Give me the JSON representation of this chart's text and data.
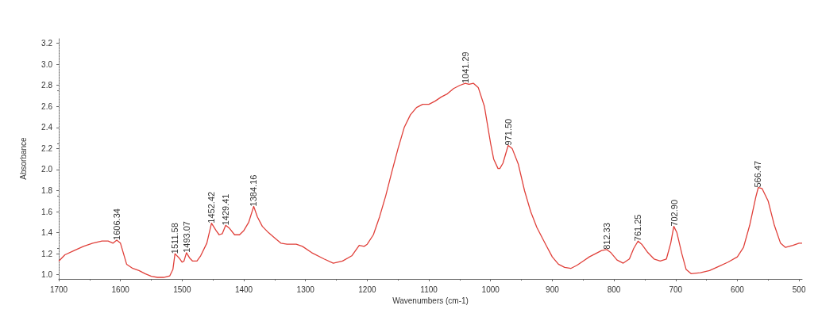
{
  "chart_data": {
    "type": "line",
    "xlabel": "Wavenumbers (cm-1)",
    "ylabel": "Absorbance",
    "xlim": [
      1700,
      495
    ],
    "xticks": [
      1700,
      1600,
      1500,
      1400,
      1300,
      1200,
      1100,
      1000,
      900,
      800,
      700,
      600,
      500
    ],
    "ylim": [
      0.96,
      3.25
    ],
    "yticks": [
      {
        "value": 1,
        "label": "1.0"
      },
      1.2,
      1.4,
      1.6,
      1.8,
      {
        "value": 2,
        "label": "2.0"
      },
      2.2,
      2.4,
      2.6,
      2.8,
      {
        "value": 3,
        "label": "3.0"
      },
      3.2
    ],
    "grid": false,
    "marker": "none",
    "line_style": "solid",
    "series": [
      {
        "color": "#e0403a",
        "x": [
          1700,
          1690,
          1675,
          1660,
          1645,
          1630,
          1620,
          1612,
          1606,
          1600,
          1595,
          1590,
          1580,
          1570,
          1560,
          1550,
          1540,
          1530,
          1520,
          1515,
          1511.6,
          1505,
          1500,
          1497,
          1493,
          1488,
          1483,
          1476,
          1470,
          1460,
          1452.4,
          1445,
          1440,
          1435,
          1429.4,
          1423,
          1415,
          1407,
          1400,
          1392,
          1384,
          1378,
          1370,
          1360,
          1350,
          1340,
          1330,
          1315,
          1305,
          1290,
          1270,
          1255,
          1240,
          1225,
          1213,
          1205,
          1200,
          1190,
          1180,
          1170,
          1160,
          1150,
          1140,
          1130,
          1120,
          1110,
          1100,
          1090,
          1080,
          1070,
          1060,
          1050,
          1041,
          1035,
          1028,
          1020,
          1010,
          1000,
          995,
          988,
          985,
          980,
          975,
          971.5,
          965,
          955,
          945,
          935,
          925,
          910,
          900,
          890,
          880,
          870,
          860,
          850,
          840,
          830,
          820,
          812,
          805,
          795,
          785,
          775,
          768,
          761,
          755,
          745,
          735,
          725,
          715,
          708,
          703,
          698,
          690,
          683,
          675,
          660,
          645,
          630,
          615,
          600,
          590,
          580,
          570,
          566,
          560,
          550,
          540,
          530,
          522,
          510,
          500,
          495
        ],
        "values": [
          1.13,
          1.19,
          1.23,
          1.27,
          1.3,
          1.32,
          1.32,
          1.3,
          1.33,
          1.3,
          1.2,
          1.1,
          1.06,
          1.04,
          1.01,
          0.985,
          0.975,
          0.975,
          0.99,
          1.05,
          1.2,
          1.16,
          1.12,
          1.13,
          1.21,
          1.16,
          1.13,
          1.13,
          1.18,
          1.3,
          1.49,
          1.42,
          1.38,
          1.39,
          1.47,
          1.44,
          1.38,
          1.38,
          1.42,
          1.5,
          1.65,
          1.55,
          1.46,
          1.4,
          1.35,
          1.3,
          1.29,
          1.29,
          1.27,
          1.21,
          1.15,
          1.11,
          1.13,
          1.18,
          1.28,
          1.27,
          1.29,
          1.38,
          1.55,
          1.75,
          1.98,
          2.2,
          2.4,
          2.52,
          2.59,
          2.62,
          2.62,
          2.65,
          2.69,
          2.72,
          2.77,
          2.8,
          2.82,
          2.81,
          2.82,
          2.78,
          2.6,
          2.25,
          2.1,
          2.01,
          2.01,
          2.06,
          2.16,
          2.23,
          2.2,
          2.05,
          1.8,
          1.6,
          1.45,
          1.28,
          1.17,
          1.1,
          1.07,
          1.06,
          1.09,
          1.13,
          1.17,
          1.2,
          1.23,
          1.24,
          1.21,
          1.14,
          1.11,
          1.15,
          1.25,
          1.32,
          1.29,
          1.21,
          1.15,
          1.13,
          1.15,
          1.3,
          1.46,
          1.4,
          1.2,
          1.05,
          1.01,
          1.02,
          1.04,
          1.08,
          1.12,
          1.17,
          1.26,
          1.47,
          1.74,
          1.83,
          1.82,
          1.7,
          1.47,
          1.3,
          1.26,
          1.28,
          1.3,
          1.3
        ]
      }
    ],
    "annotations": [
      {
        "text": "1606.34",
        "x": 1606.34,
        "y": 1.33
      },
      {
        "text": "1511.58",
        "x": 1511.58,
        "y": 1.2
      },
      {
        "text": "1493.07",
        "x": 1493.07,
        "y": 1.21
      },
      {
        "text": "1452.42",
        "x": 1452.42,
        "y": 1.49
      },
      {
        "text": "1429.41",
        "x": 1429.41,
        "y": 1.47
      },
      {
        "text": "1384.16",
        "x": 1384.16,
        "y": 1.65
      },
      {
        "text": "1041.29",
        "x": 1041.29,
        "y": 2.82
      },
      {
        "text": "971.50",
        "x": 971.5,
        "y": 2.23
      },
      {
        "text": "812.33",
        "x": 812.33,
        "y": 1.24
      },
      {
        "text": "761.25",
        "x": 761.25,
        "y": 1.32
      },
      {
        "text": "702.90",
        "x": 702.9,
        "y": 1.46
      },
      {
        "text": "566.47",
        "x": 566.47,
        "y": 1.83
      }
    ]
  }
}
